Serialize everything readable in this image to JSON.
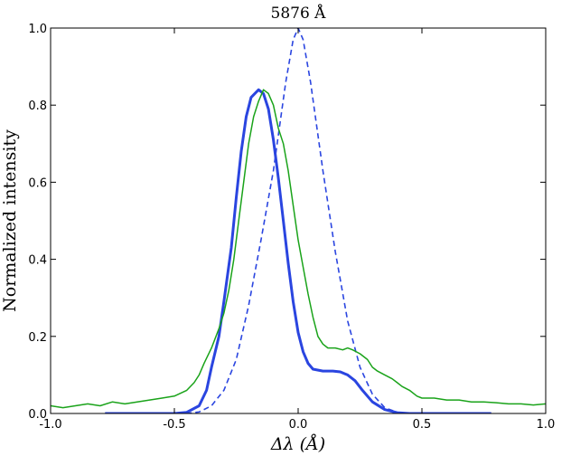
{
  "chart_data": {
    "type": "line",
    "title": "5876 Å",
    "xlabel": "Δλ (Å)",
    "ylabel": "Normalized intensity",
    "xlim": [
      -1.0,
      1.0
    ],
    "ylim": [
      0.0,
      1.0
    ],
    "x_ticks": [
      "-1.0",
      "-0.5",
      "0.0",
      "0.5",
      "1.0"
    ],
    "y_ticks": [
      "0.0",
      "0.2",
      "0.4",
      "0.6",
      "0.8",
      "1.0"
    ],
    "grid": false,
    "legend": "none",
    "series": [
      {
        "style": "dashed",
        "color": "#2a45e0",
        "points": [
          [
            -0.78,
            0.0
          ],
          [
            -0.45,
            0.0
          ],
          [
            -0.4,
            0.004
          ],
          [
            -0.35,
            0.02
          ],
          [
            -0.3,
            0.06
          ],
          [
            -0.25,
            0.14
          ],
          [
            -0.2,
            0.28
          ],
          [
            -0.15,
            0.45
          ],
          [
            -0.1,
            0.63
          ],
          [
            -0.05,
            0.86
          ],
          [
            -0.02,
            0.97
          ],
          [
            0.0,
            1.0
          ],
          [
            0.02,
            0.97
          ],
          [
            0.05,
            0.86
          ],
          [
            0.1,
            0.63
          ],
          [
            0.15,
            0.42
          ],
          [
            0.2,
            0.24
          ],
          [
            0.25,
            0.12
          ],
          [
            0.3,
            0.05
          ],
          [
            0.35,
            0.015
          ],
          [
            0.4,
            0.003
          ],
          [
            0.45,
            0.0
          ],
          [
            0.78,
            0.0
          ]
        ]
      },
      {
        "style": "solid-thick",
        "color": "#2a45e0",
        "points": [
          [
            -0.78,
            0.0
          ],
          [
            -0.5,
            0.0
          ],
          [
            -0.45,
            0.003
          ],
          [
            -0.4,
            0.02
          ],
          [
            -0.37,
            0.06
          ],
          [
            -0.35,
            0.12
          ],
          [
            -0.32,
            0.2
          ],
          [
            -0.3,
            0.29
          ],
          [
            -0.27,
            0.43
          ],
          [
            -0.25,
            0.56
          ],
          [
            -0.23,
            0.68
          ],
          [
            -0.21,
            0.77
          ],
          [
            -0.19,
            0.82
          ],
          [
            -0.16,
            0.84
          ],
          [
            -0.14,
            0.83
          ],
          [
            -0.12,
            0.79
          ],
          [
            -0.1,
            0.71
          ],
          [
            -0.08,
            0.61
          ],
          [
            -0.06,
            0.5
          ],
          [
            -0.04,
            0.39
          ],
          [
            -0.02,
            0.29
          ],
          [
            0.0,
            0.21
          ],
          [
            0.02,
            0.16
          ],
          [
            0.04,
            0.13
          ],
          [
            0.06,
            0.115
          ],
          [
            0.1,
            0.11
          ],
          [
            0.14,
            0.11
          ],
          [
            0.17,
            0.108
          ],
          [
            0.2,
            0.1
          ],
          [
            0.23,
            0.085
          ],
          [
            0.26,
            0.06
          ],
          [
            0.3,
            0.03
          ],
          [
            0.35,
            0.01
          ],
          [
            0.4,
            0.002
          ],
          [
            0.45,
            0.0
          ],
          [
            0.78,
            0.0
          ]
        ]
      },
      {
        "style": "solid-thin",
        "color": "#1aa31a",
        "points": [
          [
            -1.0,
            0.02
          ],
          [
            -0.95,
            0.015
          ],
          [
            -0.9,
            0.02
          ],
          [
            -0.85,
            0.025
          ],
          [
            -0.8,
            0.02
          ],
          [
            -0.75,
            0.03
          ],
          [
            -0.7,
            0.025
          ],
          [
            -0.65,
            0.03
          ],
          [
            -0.6,
            0.035
          ],
          [
            -0.55,
            0.04
          ],
          [
            -0.5,
            0.045
          ],
          [
            -0.45,
            0.06
          ],
          [
            -0.42,
            0.08
          ],
          [
            -0.4,
            0.1
          ],
          [
            -0.38,
            0.13
          ],
          [
            -0.35,
            0.17
          ],
          [
            -0.32,
            0.22
          ],
          [
            -0.3,
            0.26
          ],
          [
            -0.28,
            0.32
          ],
          [
            -0.26,
            0.4
          ],
          [
            -0.24,
            0.5
          ],
          [
            -0.22,
            0.6
          ],
          [
            -0.2,
            0.7
          ],
          [
            -0.18,
            0.77
          ],
          [
            -0.16,
            0.81
          ],
          [
            -0.14,
            0.84
          ],
          [
            -0.12,
            0.83
          ],
          [
            -0.1,
            0.8
          ],
          [
            -0.08,
            0.74
          ],
          [
            -0.06,
            0.7
          ],
          [
            -0.04,
            0.63
          ],
          [
            -0.02,
            0.54
          ],
          [
            0.0,
            0.45
          ],
          [
            0.02,
            0.38
          ],
          [
            0.04,
            0.31
          ],
          [
            0.06,
            0.25
          ],
          [
            0.08,
            0.2
          ],
          [
            0.1,
            0.18
          ],
          [
            0.12,
            0.17
          ],
          [
            0.15,
            0.17
          ],
          [
            0.18,
            0.165
          ],
          [
            0.2,
            0.17
          ],
          [
            0.22,
            0.165
          ],
          [
            0.25,
            0.155
          ],
          [
            0.28,
            0.14
          ],
          [
            0.3,
            0.12
          ],
          [
            0.32,
            0.11
          ],
          [
            0.35,
            0.1
          ],
          [
            0.38,
            0.09
          ],
          [
            0.4,
            0.08
          ],
          [
            0.42,
            0.07
          ],
          [
            0.45,
            0.06
          ],
          [
            0.48,
            0.045
          ],
          [
            0.5,
            0.04
          ],
          [
            0.55,
            0.04
          ],
          [
            0.6,
            0.035
          ],
          [
            0.65,
            0.035
          ],
          [
            0.7,
            0.03
          ],
          [
            0.75,
            0.03
          ],
          [
            0.8,
            0.028
          ],
          [
            0.85,
            0.025
          ],
          [
            0.9,
            0.025
          ],
          [
            0.95,
            0.022
          ],
          [
            1.0,
            0.025
          ]
        ]
      }
    ]
  }
}
